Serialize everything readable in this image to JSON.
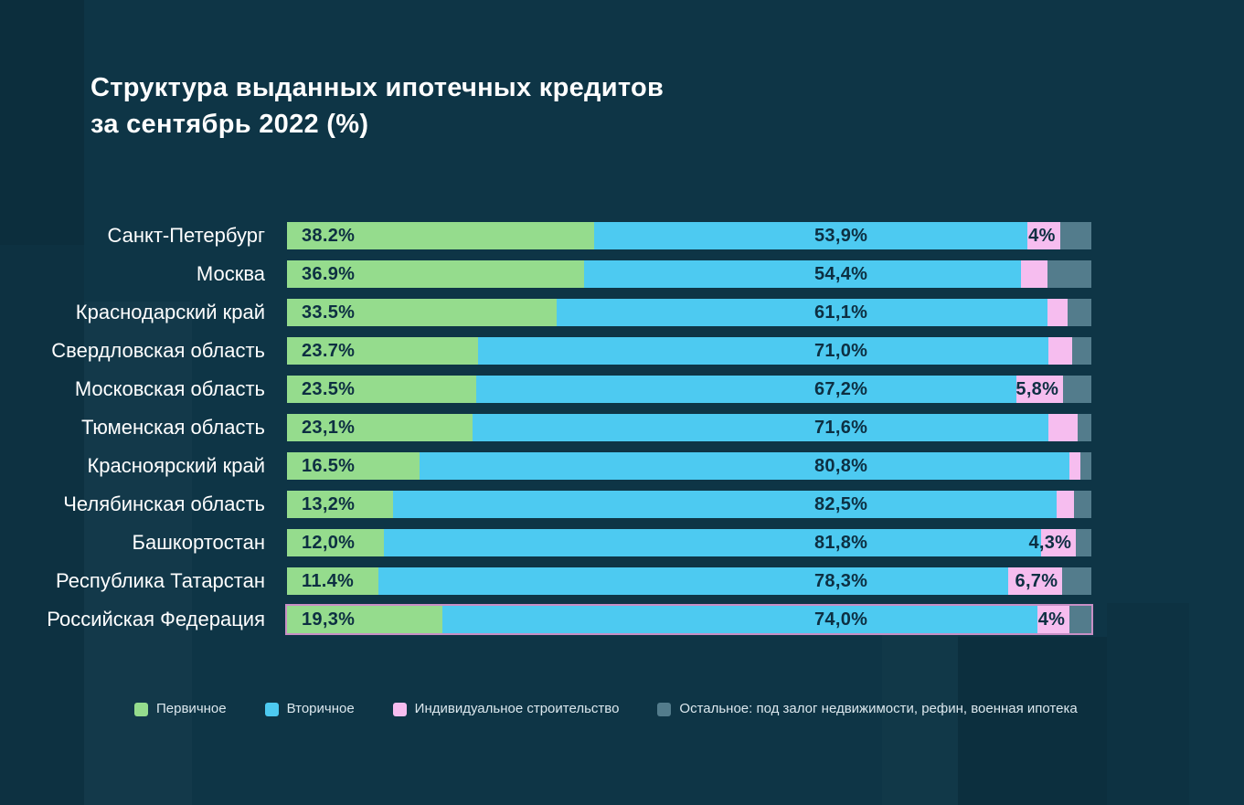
{
  "title": {
    "line1": "Структура выданных ипотечных кредитов",
    "line2": "за сентябрь 2022 (%)"
  },
  "colors": {
    "background": "#0e3546",
    "primary_green": "#95dc8d",
    "secondary_blue": "#4dcaf1",
    "construction_pink": "#f6bdef",
    "other_gray": "#537c8c",
    "bar_value_text": "#0d2f42",
    "region_label_text": "#ffffff",
    "rf_highlight_outline": "#c88fc5",
    "legend_text": "#dce8ee"
  },
  "legend": [
    {
      "label": "Первичное",
      "color_key": "primary_green"
    },
    {
      "label": "Вторичное",
      "color_key": "secondary_blue"
    },
    {
      "label": "Индивидуальное строительство",
      "color_key": "construction_pink"
    },
    {
      "label": "Остальное: под залог недвижимости, рефин, военная ипотека",
      "color_key": "other_gray"
    }
  ],
  "chart_data": {
    "type": "bar",
    "orientation": "horizontal",
    "stacked": true,
    "unit": "%",
    "xlim": [
      0,
      100
    ],
    "grid": false,
    "legend_position": "bottom",
    "title": "Структура выданных ипотечных кредитов за сентябрь 2022 (%)",
    "categories": [
      "Санкт-Петербург",
      "Москва",
      "Краснодарский край",
      "Свердловская область",
      "Московская область",
      "Тюменская область",
      "Красноярский край",
      "Челябинская область",
      "Башкортостан",
      "Республика Татарстан",
      "Российская Федерация"
    ],
    "highlighted_category": "Российская Федерация",
    "series": [
      {
        "name": "Первичное",
        "values": [
          38.2,
          36.9,
          33.5,
          23.7,
          23.5,
          23.1,
          16.5,
          13.2,
          12.0,
          11.4,
          19.3
        ],
        "labels": [
          "38.2%",
          "36.9%",
          "33.5%",
          "23.7%",
          "23.5%",
          "23,1%",
          "16.5%",
          "13,2%",
          "12,0%",
          "11.4%",
          "19,3%"
        ]
      },
      {
        "name": "Вторичное",
        "values": [
          53.9,
          54.4,
          61.1,
          71.0,
          67.2,
          71.6,
          80.8,
          82.5,
          81.8,
          78.3,
          74.0
        ],
        "labels": [
          "53,9%",
          "54,4%",
          "61,1%",
          "71,0%",
          "67,2%",
          "71,6%",
          "80,8%",
          "82,5%",
          "81,8%",
          "78,3%",
          "74,0%"
        ]
      },
      {
        "name": "Индивидуальное строительство",
        "values": [
          4.0,
          3.3,
          2.5,
          2.9,
          5.8,
          3.6,
          1.3,
          2.1,
          4.3,
          6.7,
          4.0
        ],
        "labels": [
          "4%",
          "",
          "",
          "",
          "5,8%",
          "",
          "",
          "",
          "4,3%",
          "6,7%",
          "4%"
        ]
      },
      {
        "name": "Остальное: под залог недвижимости, рефин, военная ипотека",
        "values": [
          3.9,
          5.4,
          2.9,
          2.4,
          3.5,
          1.7,
          1.4,
          2.2,
          1.9,
          3.6,
          2.7
        ],
        "labels": [
          "",
          "",
          "",
          "",
          "",
          "",
          "",
          "",
          "",
          "",
          ""
        ]
      }
    ]
  }
}
